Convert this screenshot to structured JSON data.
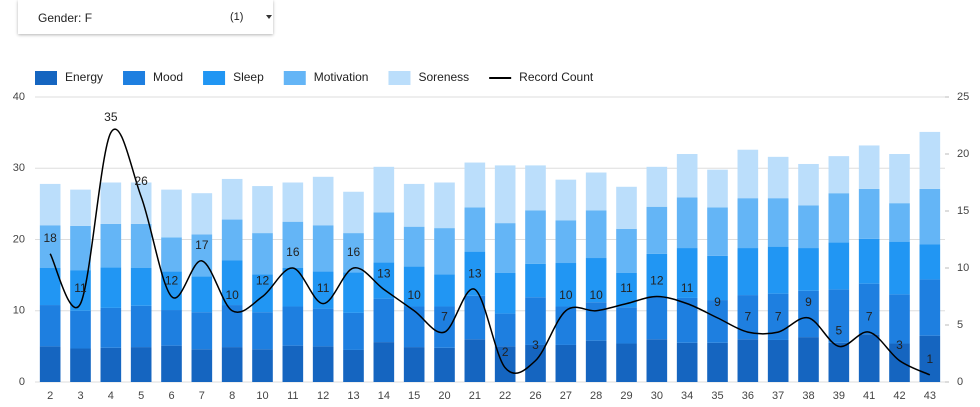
{
  "filter": {
    "label": "Gender:",
    "value": "F",
    "count": "(1)"
  },
  "chart_data": {
    "type": "stacked-bar-line",
    "categories": [
      "2",
      "3",
      "4",
      "5",
      "6",
      "7",
      "8",
      "10",
      "11",
      "12",
      "13",
      "14",
      "15",
      "20",
      "21",
      "22",
      "26",
      "27",
      "28",
      "29",
      "30",
      "34",
      "35",
      "36",
      "37",
      "38",
      "39",
      "41",
      "42",
      "43"
    ],
    "series": [
      {
        "name": "Energy",
        "color": "#1565c0",
        "values": [
          5,
          4.7,
          4.8,
          4.9,
          5.1,
          4.6,
          4.9,
          4.6,
          5.1,
          5,
          4.5,
          5.6,
          4.9,
          4.8,
          6,
          5,
          5.2,
          5.2,
          5.8,
          5.4,
          6,
          5.5,
          5.5,
          6,
          5.9,
          6.3,
          5.5,
          6.7,
          5.4,
          6.5
        ]
      },
      {
        "name": "Mood",
        "color": "#1e7fe0",
        "values": [
          5.8,
          5.3,
          5.6,
          5.8,
          5,
          5.2,
          5.9,
          5.2,
          5.5,
          5.3,
          5.2,
          6.1,
          5.7,
          5.8,
          6.1,
          4.6,
          6.7,
          5.4,
          5.4,
          5.1,
          6,
          6.3,
          6,
          6.2,
          6.5,
          6.5,
          7.5,
          7.1,
          6.9,
          7.9
        ]
      },
      {
        "name": "Sleep",
        "color": "#2196f3",
        "values": [
          5.2,
          5.7,
          5.7,
          5.3,
          5.4,
          5,
          6.3,
          5.3,
          5.4,
          5.2,
          5.7,
          5.1,
          5.6,
          4.5,
          6.2,
          5.7,
          4.7,
          6.1,
          6.2,
          4.8,
          6,
          7,
          6.2,
          6.6,
          6.6,
          6,
          6.6,
          6.3,
          7.4,
          4.9
        ]
      },
      {
        "name": "Motivation",
        "color": "#64b5f6",
        "values": [
          6,
          6.2,
          6.1,
          6.2,
          4.8,
          5.9,
          5.7,
          5.8,
          6.5,
          6.5,
          5.5,
          7,
          5.6,
          6.5,
          6.2,
          7,
          7.5,
          6,
          6.7,
          6.2,
          6.6,
          7.1,
          6.8,
          7,
          6.8,
          6,
          6.9,
          7,
          5.4,
          7.8
        ]
      },
      {
        "name": "Soreness",
        "color": "#bbdefb",
        "values": [
          5.8,
          5.1,
          5.8,
          5.8,
          6.7,
          5.8,
          5.7,
          6.6,
          5.5,
          6.8,
          5.8,
          6.4,
          6,
          6.4,
          6.3,
          8.1,
          6.3,
          5.7,
          5.3,
          5.9,
          5.6,
          6.1,
          5.3,
          6.8,
          5.8,
          5.8,
          5.2,
          6.1,
          6.9,
          8
        ]
      },
      {
        "name": "Record Count",
        "color": "#000000",
        "line": true,
        "values": [
          18,
          11,
          35,
          26,
          12,
          17,
          10,
          12,
          16,
          11,
          16,
          13,
          10,
          7,
          13,
          2,
          3,
          10,
          10,
          11,
          12,
          11,
          9,
          7,
          7,
          9,
          5,
          7,
          3,
          1
        ]
      }
    ],
    "ylim": [
      0,
      40
    ],
    "yticks": [
      0,
      10,
      20,
      30,
      40
    ],
    "y2lim": [
      0,
      25
    ],
    "y2ticks": [
      0,
      5,
      10,
      15,
      20,
      25
    ],
    "grid": true
  }
}
